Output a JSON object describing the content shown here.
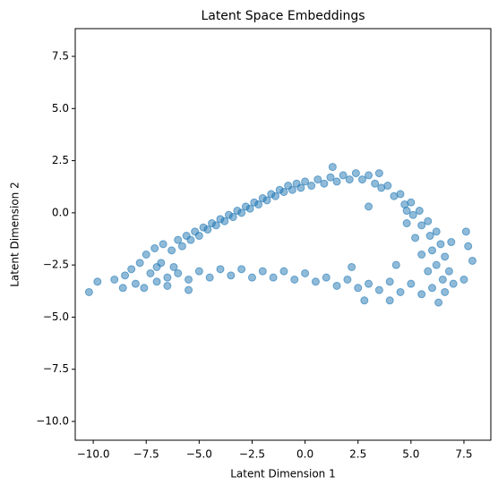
{
  "chart_data": {
    "type": "scatter",
    "title": "Latent Space Embeddings",
    "x_label": "Latent Dimension 1",
    "y_label": "Latent Dimension 2",
    "color": "#1f77b4",
    "x": [
      -8.5,
      -8.2,
      -8.0,
      -7.8,
      -7.6,
      -7.5,
      -7.3,
      -7.1,
      -7.0,
      -6.8,
      -6.7,
      -6.5,
      -6.3,
      -6.2,
      -6.0,
      -5.8,
      -5.6,
      -5.4,
      -5.2,
      -5.0,
      -4.8,
      -4.6,
      -4.4,
      -4.2,
      -4.0,
      -3.8,
      -3.6,
      -3.4,
      -3.2,
      -3.0,
      -2.8,
      -2.6,
      -2.4,
      -2.2,
      -2.0,
      -1.8,
      -1.6,
      -1.4,
      -1.2,
      -1.0,
      -0.8,
      -0.6,
      -0.4,
      -0.2,
      0.0,
      0.3,
      0.6,
      0.9,
      1.2,
      1.5,
      1.8,
      2.1,
      2.4,
      2.7,
      3.0,
      3.3,
      3.6,
      3.9,
      4.2,
      4.5,
      4.7,
      5.0,
      5.1,
      5.4,
      5.5,
      5.8,
      5.9,
      6.2,
      6.0,
      6.4,
      6.6,
      6.2,
      6.8,
      6.5,
      7.0,
      5.5,
      5.2,
      4.8,
      5.8,
      6.9,
      6.6,
      6.0,
      5.5,
      5.0,
      4.5,
      4.0,
      3.5,
      3.0,
      2.5,
      2.0,
      1.5,
      1.0,
      0.5,
      0.0,
      -0.5,
      -1.0,
      -1.5,
      -2.0,
      -2.5,
      -3.0,
      -3.5,
      -4.0,
      -4.5,
      -5.0,
      -5.5,
      -6.0,
      -6.5,
      -7.0,
      -8.6,
      -9.0,
      -10.2,
      -9.8,
      7.6,
      7.7,
      7.9,
      3.0,
      1.3,
      4.0,
      2.8,
      6.3,
      7.5,
      4.8,
      3.5,
      -5.5,
      2.2,
      4.3
    ],
    "values": [
      -3.0,
      -2.7,
      -3.4,
      -2.4,
      -3.6,
      -2.0,
      -2.9,
      -1.7,
      -3.3,
      -2.4,
      -1.5,
      -3.1,
      -1.8,
      -2.6,
      -1.3,
      -1.6,
      -1.1,
      -1.3,
      -0.9,
      -1.1,
      -0.7,
      -0.8,
      -0.5,
      -0.6,
      -0.3,
      -0.4,
      -0.1,
      -0.2,
      0.1,
      0.0,
      0.3,
      0.2,
      0.5,
      0.4,
      0.7,
      0.6,
      0.9,
      0.8,
      1.1,
      1.0,
      1.3,
      1.1,
      1.4,
      1.2,
      1.5,
      1.3,
      1.6,
      1.4,
      1.7,
      1.5,
      1.8,
      1.6,
      1.9,
      1.6,
      1.8,
      1.4,
      1.2,
      1.3,
      0.8,
      0.9,
      0.4,
      0.5,
      -0.1,
      0.1,
      -0.6,
      -0.4,
      -1.1,
      -0.9,
      -1.8,
      -1.5,
      -2.1,
      -2.5,
      -2.8,
      -3.2,
      -3.4,
      -2.0,
      -1.2,
      -0.5,
      -2.8,
      -1.4,
      -3.8,
      -3.6,
      -3.9,
      -3.4,
      -3.8,
      -3.3,
      -3.7,
      -3.4,
      -3.6,
      -3.2,
      -3.5,
      -3.1,
      -3.3,
      -2.9,
      -3.2,
      -2.8,
      -3.1,
      -2.8,
      -3.1,
      -2.7,
      -3.0,
      -2.7,
      -3.1,
      -2.8,
      -3.2,
      -2.9,
      -3.5,
      -2.6,
      -3.6,
      -3.2,
      -3.8,
      -3.3,
      -0.9,
      -1.6,
      -2.3,
      0.3,
      2.2,
      -4.2,
      -4.2,
      -4.3,
      -3.2,
      0.1,
      1.9,
      -3.7,
      -2.6,
      -2.5
    ],
    "xlim": [
      -10.85,
      8.77
    ],
    "ylim": [
      -10.9,
      8.83
    ],
    "xticks": [
      {
        "value": -10.0,
        "label": "−10.0"
      },
      {
        "value": -7.5,
        "label": "−7.5"
      },
      {
        "value": -5.0,
        "label": "−5.0"
      },
      {
        "value": -2.5,
        "label": "−2.5"
      },
      {
        "value": 0.0,
        "label": "0.0"
      },
      {
        "value": 2.5,
        "label": "2.5"
      },
      {
        "value": 5.0,
        "label": "5.0"
      },
      {
        "value": 7.5,
        "label": "7.5"
      }
    ],
    "yticks": [
      {
        "value": -10.0,
        "label": "−10.0"
      },
      {
        "value": -7.5,
        "label": "−7.5"
      },
      {
        "value": -5.0,
        "label": "−5.0"
      },
      {
        "value": -2.5,
        "label": "−2.5"
      },
      {
        "value": 0.0,
        "label": "0.0"
      },
      {
        "value": 2.5,
        "label": "2.5"
      },
      {
        "value": 5.0,
        "label": "5.0"
      },
      {
        "value": 7.5,
        "label": "7.5"
      }
    ]
  }
}
